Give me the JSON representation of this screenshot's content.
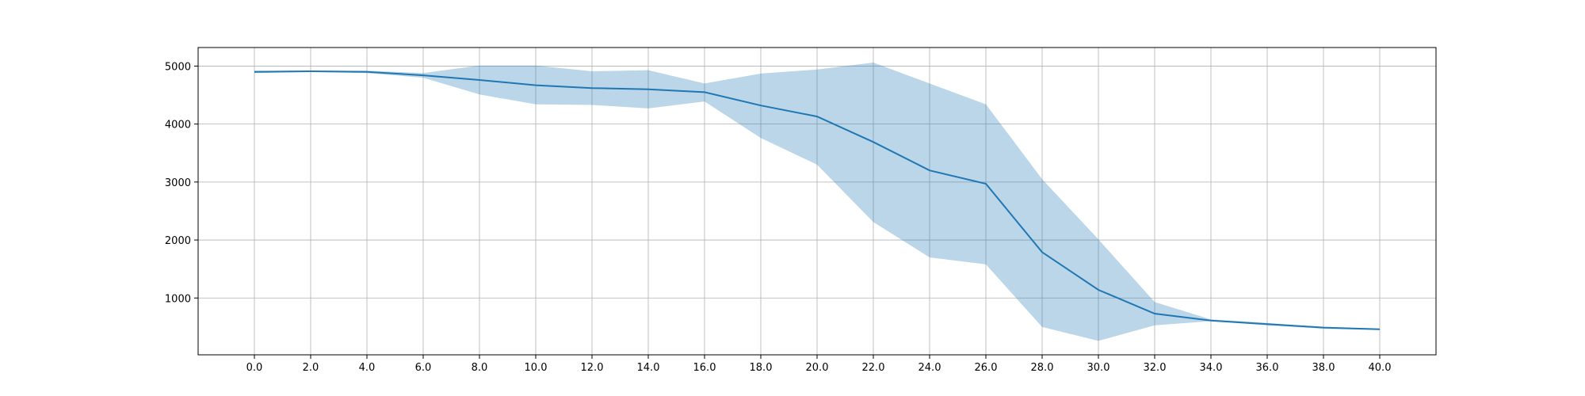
{
  "chart_data": {
    "type": "line",
    "title": "",
    "xlabel": "",
    "ylabel": "",
    "x": [
      0,
      2,
      4,
      6,
      8,
      10,
      12,
      14,
      16,
      18,
      20,
      22,
      24,
      26,
      28,
      30,
      32,
      34,
      36,
      38,
      40
    ],
    "x_tick_values": [
      0,
      2,
      4,
      6,
      8,
      10,
      12,
      14,
      16,
      18,
      20,
      22,
      24,
      26,
      28,
      30,
      32,
      34,
      36,
      38,
      40
    ],
    "x_tick_labels": [
      "0.0",
      "2.0",
      "4.0",
      "6.0",
      "8.0",
      "10.0",
      "12.0",
      "14.0",
      "16.0",
      "18.0",
      "20.0",
      "22.0",
      "24.0",
      "26.0",
      "28.0",
      "30.0",
      "32.0",
      "34.0",
      "36.0",
      "38.0",
      "40.0"
    ],
    "y_tick_values": [
      1000,
      2000,
      3000,
      4000,
      5000
    ],
    "y_tick_labels": [
      "1000",
      "2000",
      "3000",
      "4000",
      "5000"
    ],
    "xlim": [
      -2,
      42
    ],
    "ylim": [
      20,
      5320
    ],
    "grid": true,
    "series": [
      {
        "values": [
          4900,
          4910,
          4900,
          4840,
          4760,
          4670,
          4620,
          4600,
          4550,
          4320,
          4130,
          3690,
          3200,
          2970,
          1790,
          1140,
          730,
          610,
          550,
          490,
          460
        ],
        "lower": [
          4880,
          4900,
          4880,
          4800,
          4510,
          4340,
          4330,
          4270,
          4390,
          3760,
          3300,
          2310,
          1700,
          1580,
          500,
          260,
          530,
          600,
          530,
          470,
          450
        ],
        "upper": [
          4920,
          4920,
          4920,
          4880,
          5010,
          5010,
          4910,
          4930,
          4700,
          4870,
          4940,
          5060,
          4700,
          4340,
          3050,
          2010,
          930,
          630,
          570,
          500,
          470
        ],
        "color": "#1f77b4",
        "band_color": "#1f77b4",
        "band_opacity": 0.3
      }
    ]
  }
}
